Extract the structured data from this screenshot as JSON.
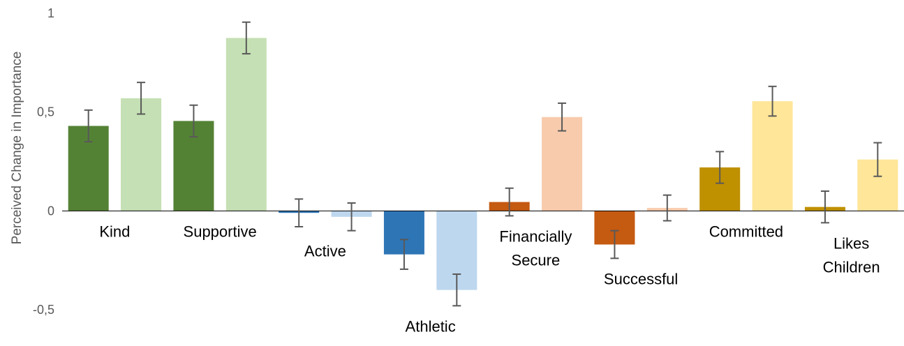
{
  "chart_data": {
    "type": "bar",
    "title": "",
    "xlabel": "",
    "ylabel": "Perceived Change in Importance",
    "ylim": [
      -0.5,
      1
    ],
    "yticks": [
      "-0,5",
      "0",
      "0,5",
      "1"
    ],
    "ytick_values": [
      -0.5,
      0,
      0.5,
      1
    ],
    "grid": false,
    "legend": "none",
    "categories": [
      "Kind",
      "Supportive",
      "Active",
      "Athletic",
      "Financially Secure",
      "Successful",
      "Committed",
      "Likes Children"
    ],
    "category_label_lines": [
      [
        "Kind"
      ],
      [
        "Supportive"
      ],
      [
        "Active"
      ],
      [
        "Athletic"
      ],
      [
        "Financially",
        "Secure"
      ],
      [
        "Successful"
      ],
      [
        "Committed"
      ],
      [
        "Likes",
        "Children"
      ]
    ],
    "bars": [
      {
        "category": "Kind",
        "value": 0.43,
        "error": 0.08,
        "color": "#548235"
      },
      {
        "category": "Kind",
        "value": 0.57,
        "error": 0.08,
        "color": "#C5E0B4"
      },
      {
        "category": "Supportive",
        "value": 0.455,
        "error": 0.08,
        "color": "#548235"
      },
      {
        "category": "Supportive",
        "value": 0.875,
        "error": 0.08,
        "color": "#C5E0B4"
      },
      {
        "category": "Active",
        "value": -0.01,
        "error": 0.07,
        "color": "#2E75B6"
      },
      {
        "category": "Active",
        "value": -0.03,
        "error": 0.07,
        "color": "#BDD7EE"
      },
      {
        "category": "Athletic",
        "value": -0.22,
        "error": 0.075,
        "color": "#2E75B6"
      },
      {
        "category": "Athletic",
        "value": -0.4,
        "error": 0.08,
        "color": "#BDD7EE"
      },
      {
        "category": "Financially Secure",
        "value": 0.045,
        "error": 0.07,
        "color": "#C55A11"
      },
      {
        "category": "Financially Secure",
        "value": 0.475,
        "error": 0.07,
        "color": "#F8CBAD"
      },
      {
        "category": "Successful",
        "value": -0.17,
        "error": 0.07,
        "color": "#C55A11"
      },
      {
        "category": "Successful",
        "value": 0.015,
        "error": 0.065,
        "color": "#F8CBAD"
      },
      {
        "category": "Committed",
        "value": 0.22,
        "error": 0.08,
        "color": "#BF9000"
      },
      {
        "category": "Committed",
        "value": 0.555,
        "error": 0.075,
        "color": "#FFE699"
      },
      {
        "category": "Likes Children",
        "value": 0.02,
        "error": 0.08,
        "color": "#BF9000"
      },
      {
        "category": "Likes Children",
        "value": 0.26,
        "error": 0.085,
        "color": "#FFE699"
      }
    ],
    "colors": {
      "axis": "#000000",
      "error_bar": "#595959",
      "tick_text": "#595959"
    }
  }
}
